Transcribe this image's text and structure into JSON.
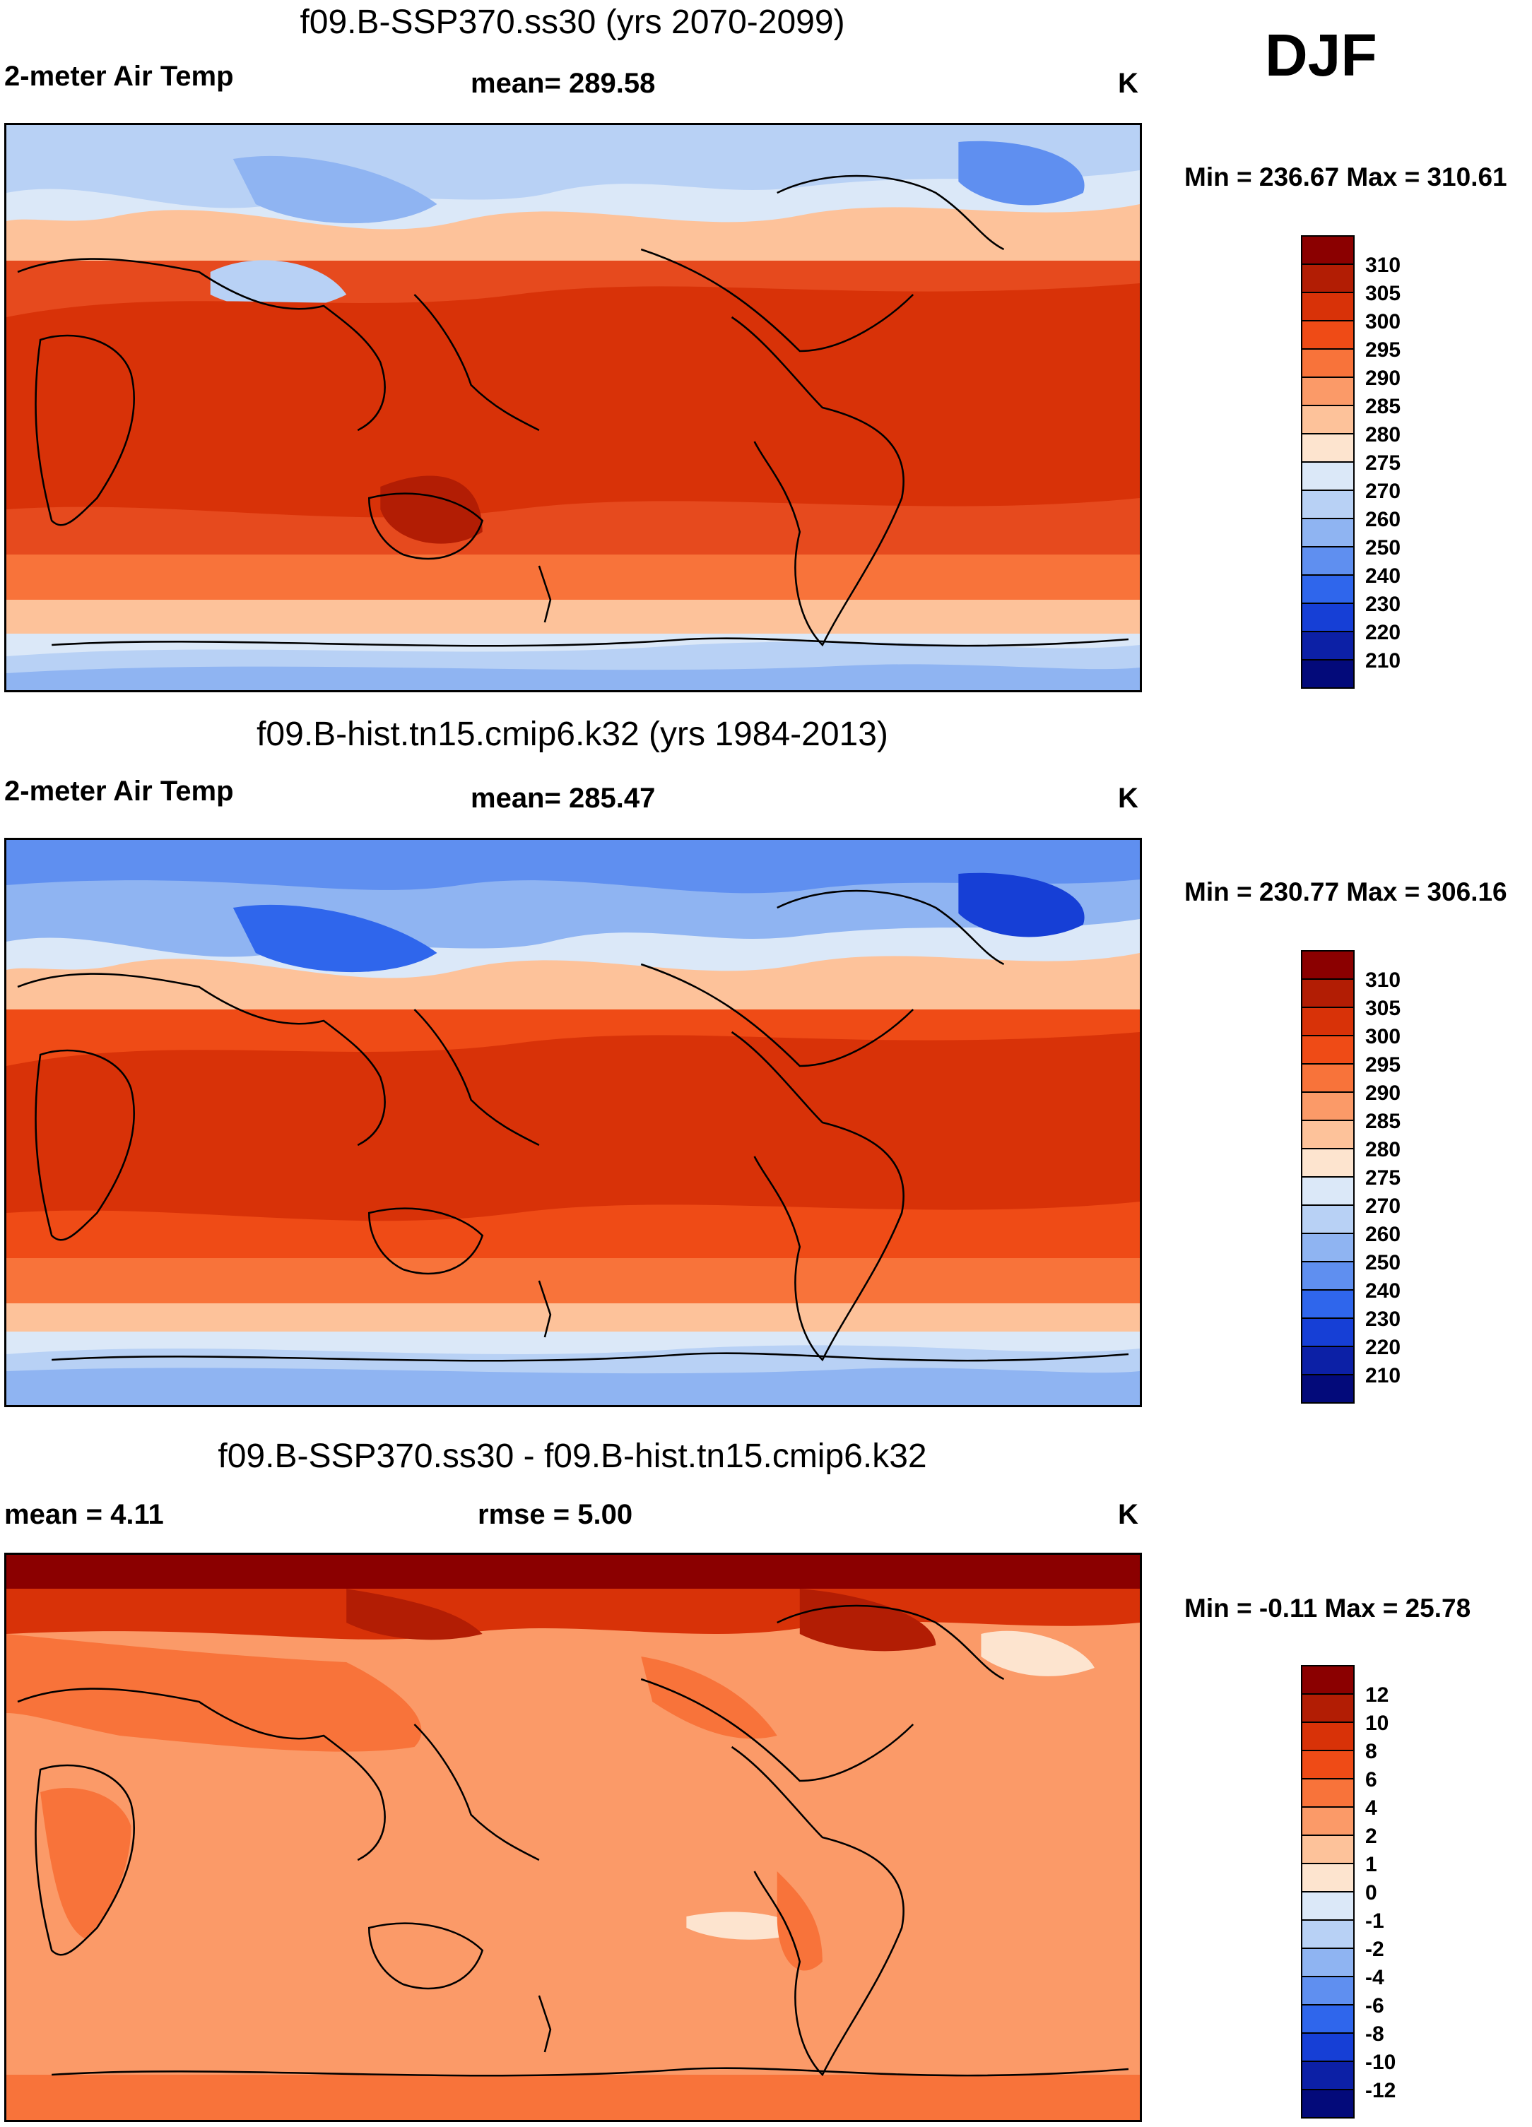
{
  "season": "DJF",
  "panels": [
    {
      "id": "ssp370",
      "title": "f09.B-SSP370.ss30 (yrs 2070-2099)",
      "left_label": "2-meter Air Temp",
      "mean_label": "mean= 289.58",
      "units": "K",
      "minmax": "Min = 236.67 Max = 310.61",
      "colorbar": {
        "labels": [
          "310",
          "305",
          "300",
          "295",
          "290",
          "285",
          "280",
          "275",
          "270",
          "260",
          "250",
          "240",
          "230",
          "220",
          "210"
        ],
        "colors": [
          "#8b0000",
          "#b21d04",
          "#d83208",
          "#ef4b16",
          "#f8733a",
          "#fb9a68",
          "#fdc29a",
          "#fde4cf",
          "#dbe8f8",
          "#b8d1f5",
          "#8fb4f2",
          "#5f8ff0",
          "#2f66ec",
          "#163fd6",
          "#0c20a6",
          "#030a7a"
        ]
      }
    },
    {
      "id": "hist",
      "title": "f09.B-hist.tn15.cmip6.k32 (yrs 1984-2013)",
      "left_label": "2-meter Air Temp",
      "mean_label": "mean= 285.47",
      "units": "K",
      "minmax": "Min = 230.77 Max = 306.16",
      "colorbar": {
        "labels": [
          "310",
          "305",
          "300",
          "295",
          "290",
          "285",
          "280",
          "275",
          "270",
          "260",
          "250",
          "240",
          "230",
          "220",
          "210"
        ],
        "colors": [
          "#8b0000",
          "#b21d04",
          "#d83208",
          "#ef4b16",
          "#f8733a",
          "#fb9a68",
          "#fdc29a",
          "#fde4cf",
          "#dbe8f8",
          "#b8d1f5",
          "#8fb4f2",
          "#5f8ff0",
          "#2f66ec",
          "#163fd6",
          "#0c20a6",
          "#030a7a"
        ]
      }
    },
    {
      "id": "diff",
      "title": "f09.B-SSP370.ss30 - f09.B-hist.tn15.cmip6.k32",
      "left_label": "mean =   4.11",
      "mean_label": "rmse =   5.00",
      "units": "K",
      "minmax": "Min =  -0.11 Max =  25.78",
      "colorbar": {
        "labels": [
          "12",
          "10",
          "8",
          "6",
          "4",
          "2",
          "1",
          "0",
          "-1",
          "-2",
          "-4",
          "-6",
          "-8",
          "-10",
          "-12"
        ],
        "colors": [
          "#8b0000",
          "#b21d04",
          "#d83208",
          "#ef4b16",
          "#f8733a",
          "#fb9a68",
          "#fdc29a",
          "#fde4cf",
          "#dbe8f8",
          "#b8d1f5",
          "#8fb4f2",
          "#5f8ff0",
          "#2f66ec",
          "#163fd6",
          "#0c20a6",
          "#030a7a"
        ]
      }
    }
  ]
}
